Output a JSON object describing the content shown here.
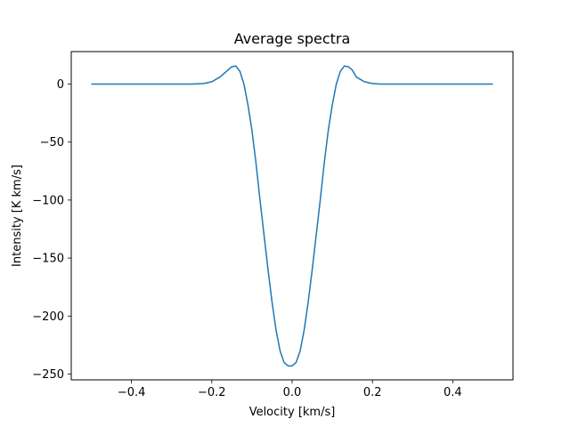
{
  "chart_data": {
    "type": "line",
    "title": "Average spectra",
    "xlabel": "Velocity [km/s]",
    "ylabel": "Intensity [K km/s]",
    "xlim": [
      -0.55,
      0.55
    ],
    "ylim": [
      -255,
      28
    ],
    "xticks": [
      -0.4,
      -0.2,
      0.0,
      0.2,
      0.4
    ],
    "xtick_labels": [
      "−0.4",
      "−0.2",
      "0.0",
      "0.2",
      "0.4"
    ],
    "yticks": [
      0,
      -50,
      -100,
      -150,
      -200,
      -250
    ],
    "ytick_labels": [
      "0",
      "−50",
      "−100",
      "−150",
      "−200",
      "−250"
    ],
    "grid": false,
    "line_color": "#1f77b4",
    "series": [
      {
        "x": [
          -0.5,
          -0.4,
          -0.3,
          -0.25,
          -0.22,
          -0.2,
          -0.18,
          -0.16,
          -0.15,
          -0.14,
          -0.13,
          -0.12,
          -0.11,
          -0.1,
          -0.09,
          -0.08,
          -0.07,
          -0.06,
          -0.05,
          -0.04,
          -0.03,
          -0.02,
          -0.01,
          0.0,
          0.01,
          0.02,
          0.03,
          0.04,
          0.05,
          0.06,
          0.07,
          0.08,
          0.09,
          0.1,
          0.11,
          0.12,
          0.13,
          0.14,
          0.15,
          0.16,
          0.18,
          0.2,
          0.22,
          0.25,
          0.3,
          0.4,
          0.5
        ],
        "y": [
          0,
          0,
          0,
          0,
          0.5,
          2,
          6,
          12,
          15,
          15.5,
          11,
          0,
          -18,
          -40,
          -68,
          -100,
          -130,
          -160,
          -188,
          -212,
          -230,
          -240,
          -243,
          -243,
          -240,
          -230,
          -212,
          -188,
          -160,
          -130,
          -100,
          -68,
          -40,
          -18,
          0,
          11,
          15.5,
          15,
          12,
          6,
          2,
          0.5,
          0,
          0,
          0,
          0,
          0
        ]
      }
    ]
  }
}
